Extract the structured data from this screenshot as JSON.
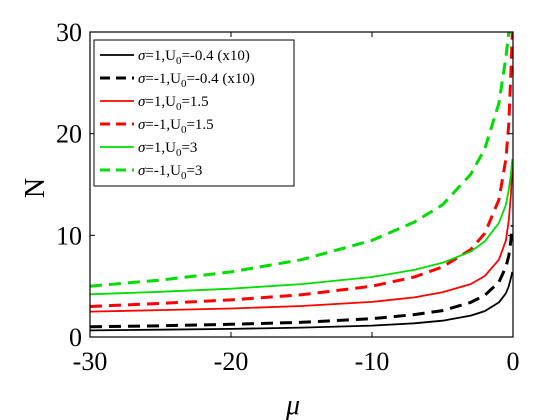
{
  "chart_data": {
    "type": "line",
    "xlabel": "μ",
    "ylabel": "N",
    "xlim": [
      -30,
      0
    ],
    "ylim": [
      0,
      30
    ],
    "xticks": [
      -30,
      -20,
      -10,
      0
    ],
    "yticks": [
      0,
      10,
      20,
      30
    ],
    "grid": false,
    "legend_position": "top-left",
    "series": [
      {
        "name": "σ=1,U0=-0.4 (x10)",
        "color": "#000000",
        "dash": "solid",
        "x": [
          -30,
          -25,
          -20,
          -15,
          -10,
          -7,
          -5,
          -3,
          -2,
          -1,
          -0.5,
          -0.3,
          -0.15,
          -0.05
        ],
        "y": [
          0.65,
          0.72,
          0.8,
          0.92,
          1.12,
          1.35,
          1.6,
          2.1,
          2.55,
          3.4,
          4.3,
          5.0,
          5.8,
          6.4
        ]
      },
      {
        "name": "σ=-1,U0=-0.4 (x10)",
        "color": "#000000",
        "dash": "dashed",
        "x": [
          -30,
          -25,
          -20,
          -15,
          -10,
          -7,
          -5,
          -3,
          -2,
          -1,
          -0.5,
          -0.3,
          -0.15,
          -0.05
        ],
        "y": [
          1.0,
          1.1,
          1.25,
          1.45,
          1.8,
          2.2,
          2.6,
          3.4,
          4.1,
          5.4,
          6.9,
          8.0,
          9.5,
          11.0
        ]
      },
      {
        "name": "σ=1,U0=1.5",
        "color": "#ff0000",
        "dash": "solid",
        "x": [
          -30,
          -25,
          -20,
          -15,
          -10,
          -7,
          -5,
          -3,
          -2,
          -1,
          -0.5,
          -0.3,
          -0.15,
          -0.05
        ],
        "y": [
          2.5,
          2.65,
          2.8,
          3.05,
          3.45,
          3.9,
          4.4,
          5.2,
          6.0,
          7.6,
          9.5,
          11.5,
          14.0,
          17.0
        ]
      },
      {
        "name": "σ=-1,U0=1.5",
        "color": "#ff0000",
        "dash": "dashed",
        "x": [
          -30,
          -25,
          -20,
          -15,
          -10,
          -7,
          -5,
          -3,
          -2,
          -1,
          -0.5,
          -0.3,
          -0.15,
          -0.05
        ],
        "y": [
          3.0,
          3.3,
          3.65,
          4.15,
          5.0,
          5.9,
          6.9,
          8.6,
          10.2,
          13.5,
          17.5,
          21.0,
          26.0,
          30.0
        ]
      },
      {
        "name": "σ=1,U0=3",
        "color": "#00dd00",
        "dash": "solid",
        "x": [
          -30,
          -25,
          -20,
          -15,
          -10,
          -7,
          -5,
          -3,
          -2,
          -1,
          -0.5,
          -0.3,
          -0.15,
          -0.05
        ],
        "y": [
          4.2,
          4.45,
          4.75,
          5.2,
          5.9,
          6.6,
          7.3,
          8.4,
          9.4,
          11.2,
          13.0,
          14.5,
          16.0,
          17.5
        ]
      },
      {
        "name": "σ=-1,U0=3",
        "color": "#00dd00",
        "dash": "dashed",
        "x": [
          -30,
          -25,
          -20,
          -15,
          -10,
          -7,
          -5,
          -3,
          -2,
          -1,
          -0.5,
          -0.3,
          -0.15,
          -0.05
        ],
        "y": [
          5.0,
          5.6,
          6.4,
          7.6,
          9.5,
          11.3,
          13.0,
          16.0,
          18.5,
          23.0,
          27.5,
          30.0,
          30.0,
          30.0
        ]
      }
    ],
    "legend_entries": [
      {
        "prefix": "σ=1,U",
        "sub": "0",
        "suffix": "=-0.4 (x10)"
      },
      {
        "prefix": "σ=-1,U",
        "sub": "0",
        "suffix": "=-0.4 (x10)"
      },
      {
        "prefix": "σ=1,U",
        "sub": "0",
        "suffix": "=1.5"
      },
      {
        "prefix": "σ=-1,U",
        "sub": "0",
        "suffix": "=1.5"
      },
      {
        "prefix": "σ=1,U",
        "sub": "0",
        "suffix": "=3"
      },
      {
        "prefix": "σ=-1,U",
        "sub": "0",
        "suffix": "=3"
      }
    ]
  }
}
